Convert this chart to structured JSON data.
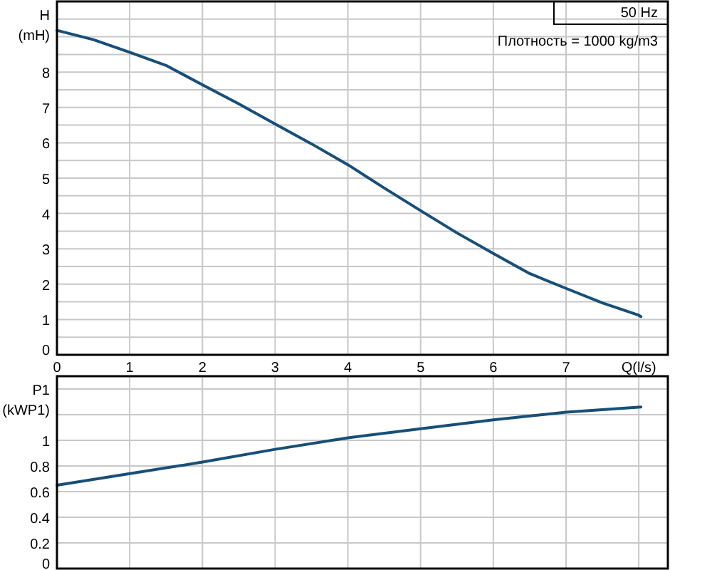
{
  "chart_data": [
    {
      "type": "line",
      "ylabel": "H\n(mH)",
      "annotations": [
        "50 Hz",
        "Плотность = 1000 kg/m3"
      ],
      "grid": true,
      "xlim": [
        0,
        8.4
      ],
      "xticks": [
        0,
        1,
        2,
        3,
        4,
        5,
        6,
        7,
        {
          "value": 8,
          "label": "Q(l/s)"
        }
      ],
      "ylim": [
        0,
        10
      ],
      "yticks": [
        0,
        {
          "value": 0.5,
          "label": null
        },
        1,
        {
          "value": 1.5,
          "label": null
        },
        2,
        {
          "value": 2.5,
          "label": null
        },
        3,
        {
          "value": 3.5,
          "label": null
        },
        4,
        {
          "value": 4.5,
          "label": null
        },
        5,
        {
          "value": 5.5,
          "label": null
        },
        6,
        {
          "value": 6.5,
          "label": null
        },
        7,
        {
          "value": 7.5,
          "label": null
        },
        8,
        {
          "value": 8.5,
          "label": null
        },
        {
          "value": 9,
          "label": null
        },
        {
          "value": 9.5,
          "label": null
        }
      ],
      "marker": "none",
      "series": [
        {
          "color": "#174f78",
          "x": [
            0,
            0.5,
            1,
            1.5,
            2,
            2.5,
            3,
            3.5,
            4,
            4.5,
            5,
            5.5,
            6,
            6.5,
            7,
            7.5,
            8,
            8.03
          ],
          "values": [
            9.18,
            8.92,
            8.56,
            8.19,
            7.64,
            7.1,
            6.53,
            5.97,
            5.38,
            4.72,
            4.08,
            3.45,
            2.87,
            2.3,
            1.88,
            1.47,
            1.12,
            1.08
          ]
        }
      ]
    },
    {
      "type": "line",
      "ylabel": "P1\n(kWP1)",
      "grid": true,
      "tick_labels": "y",
      "xlim": [
        0,
        8.4
      ],
      "xticks": [
        0,
        1,
        2,
        3,
        4,
        5,
        6,
        7,
        8
      ],
      "ylim": [
        0,
        1.5
      ],
      "yticks": [
        0,
        0.2,
        0.4,
        0.6,
        0.8,
        1,
        {
          "value": 1.2,
          "label": null
        },
        {
          "value": 1.4,
          "label": null
        }
      ],
      "marker": "none",
      "series": [
        {
          "color": "#174f78",
          "x": [
            0,
            1,
            2,
            3,
            4,
            5,
            6,
            7,
            8.03
          ],
          "values": [
            0.65,
            0.74,
            0.83,
            0.93,
            1.02,
            1.09,
            1.16,
            1.22,
            1.26
          ]
        }
      ]
    }
  ]
}
